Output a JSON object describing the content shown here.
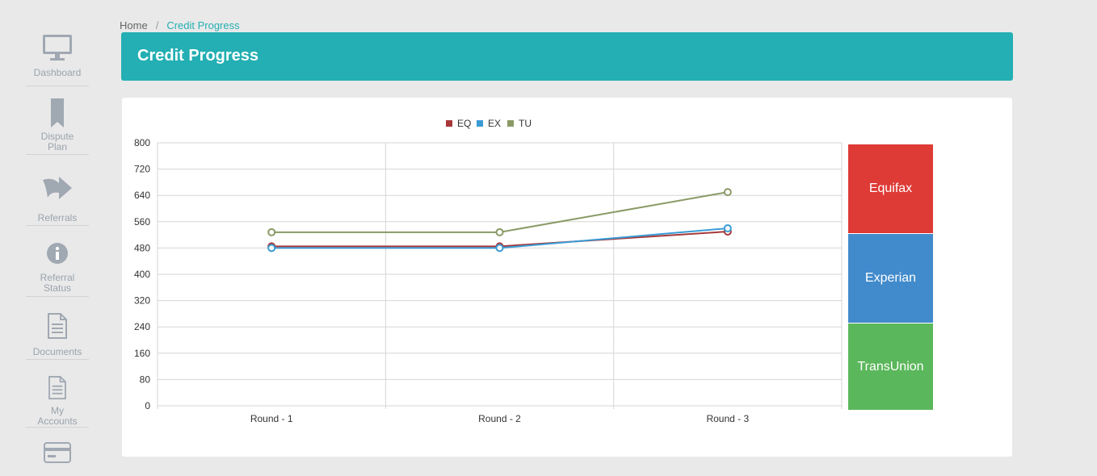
{
  "sidebar": {
    "items": [
      {
        "label": "Dashboard",
        "icon": "monitor-icon"
      },
      {
        "label": "Dispute Plan",
        "icon": "bookmark-icon"
      },
      {
        "label": "Referrals",
        "icon": "share-arrow-icon"
      },
      {
        "label": "Referral Status",
        "icon": "info-circle-icon"
      },
      {
        "label": "Documents",
        "icon": "document-icon"
      },
      {
        "label": "My Accounts",
        "icon": "document-icon"
      },
      {
        "label": "",
        "icon": "credit-card-icon"
      }
    ]
  },
  "breadcrumb": {
    "home": "Home",
    "separator": "/",
    "current": "Credit Progress"
  },
  "header": {
    "title": "Credit Progress"
  },
  "bureaus": [
    {
      "label": "Equifax",
      "color": "#de3a36"
    },
    {
      "label": "Experian",
      "color": "#418bcc"
    },
    {
      "label": "TransUnion",
      "color": "#5bb75b"
    }
  ],
  "chart_data": {
    "type": "line",
    "categories": [
      "Round - 1",
      "Round - 2",
      "Round - 3"
    ],
    "series": [
      {
        "name": "EQ",
        "color": "#a7383a",
        "values": [
          485,
          485,
          530
        ]
      },
      {
        "name": "EX",
        "color": "#3a9bd5",
        "values": [
          480,
          480,
          540
        ]
      },
      {
        "name": "TU",
        "color": "#8a9a66",
        "values": [
          528,
          528,
          650
        ]
      }
    ],
    "ylim": [
      0,
      800
    ],
    "yticks": [
      0,
      80,
      160,
      240,
      320,
      400,
      480,
      560,
      640,
      720,
      800
    ],
    "grid": true,
    "legend": "top-center",
    "title": "",
    "xlabel": "",
    "ylabel": ""
  }
}
